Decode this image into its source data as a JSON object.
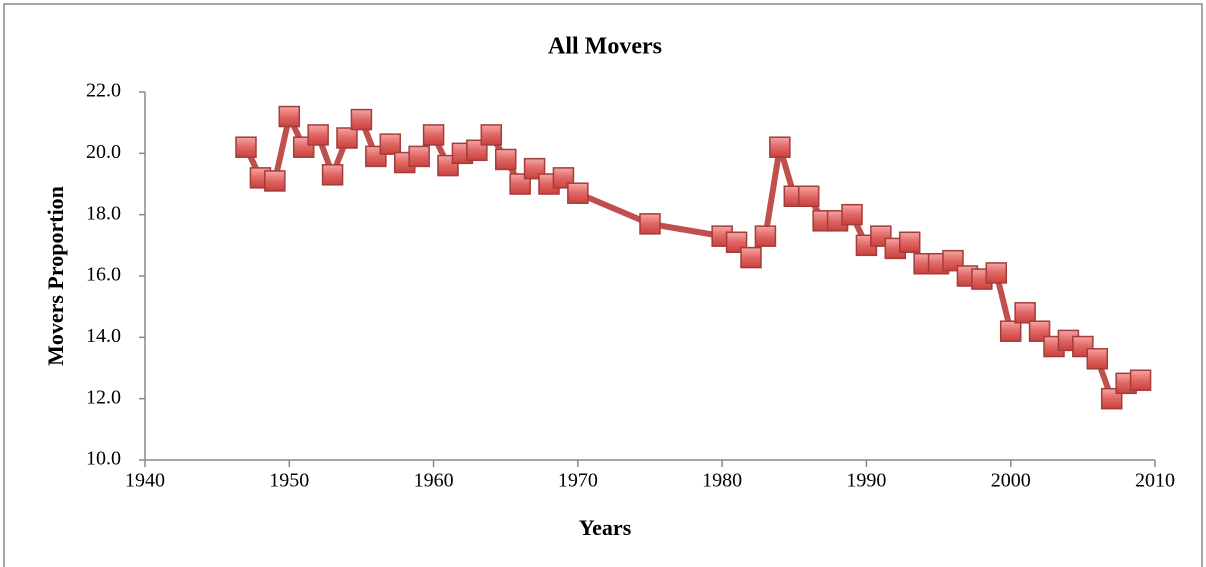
{
  "chart_data": {
    "type": "line",
    "title": "All Movers",
    "x_label": "Years",
    "y_label": "Movers Proportion",
    "x": [
      1947,
      1948,
      1949,
      1950,
      1951,
      1952,
      1953,
      1954,
      1955,
      1956,
      1957,
      1958,
      1959,
      1960,
      1961,
      1962,
      1963,
      1964,
      1965,
      1966,
      1967,
      1968,
      1969,
      1970,
      1975,
      1980,
      1981,
      1982,
      1983,
      1984,
      1985,
      1986,
      1987,
      1988,
      1989,
      1990,
      1991,
      1992,
      1993,
      1994,
      1995,
      1996,
      1997,
      1998,
      1999,
      2000,
      2001,
      2002,
      2003,
      2004,
      2005,
      2006,
      2007,
      2008,
      2009
    ],
    "series": [
      {
        "name": "All Movers",
        "color": "#c0504d",
        "values": [
          20.2,
          19.2,
          19.1,
          21.2,
          20.2,
          20.6,
          19.3,
          20.5,
          21.1,
          19.9,
          20.3,
          19.7,
          19.9,
          20.6,
          19.6,
          20.0,
          20.1,
          20.6,
          19.8,
          19.0,
          19.5,
          19.0,
          19.2,
          18.7,
          17.7,
          17.3,
          17.1,
          16.6,
          17.3,
          20.2,
          18.6,
          18.6,
          17.8,
          17.8,
          18.0,
          17.0,
          17.3,
          16.9,
          17.1,
          16.4,
          16.4,
          16.5,
          16.0,
          15.9,
          16.1,
          14.2,
          14.8,
          14.2,
          13.7,
          13.9,
          13.7,
          13.3,
          12.0,
          12.5,
          12.6
        ]
      }
    ],
    "xlim": [
      1940,
      2010
    ],
    "xticks": [
      1940,
      1950,
      1960,
      1970,
      1980,
      1990,
      2000,
      2010
    ],
    "ylim": [
      10,
      22
    ],
    "yticks": [
      {
        "value": 10,
        "label": "10.0"
      },
      {
        "value": 12,
        "label": "12.0"
      },
      {
        "value": 14,
        "label": "14.0"
      },
      {
        "value": 16,
        "label": "16.0"
      },
      {
        "value": 18,
        "label": "18.0"
      },
      {
        "value": 20,
        "label": "20.0"
      },
      {
        "value": 22,
        "label": "22.0"
      }
    ],
    "grid": false
  }
}
